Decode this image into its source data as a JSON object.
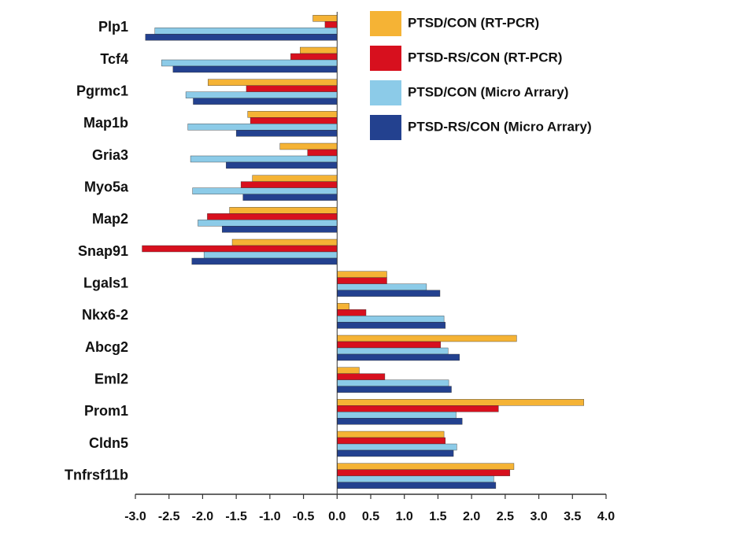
{
  "chart_data": {
    "type": "barh",
    "categories": [
      "Plp1",
      "Tcf4",
      "Pgrmc1",
      "Map1b",
      "Gria3",
      "Myo5a",
      "Map2",
      "Snap91",
      "Lgals1",
      "Nkx6-2",
      "Abcg2",
      "Eml2",
      "Prom1",
      "Cldn5",
      "Tnfrsf11b"
    ],
    "series": [
      {
        "name": "PTSD/CON (RT-PCR)",
        "color": "#f5b335",
        "values": [
          -0.36,
          -0.55,
          -1.92,
          -1.33,
          -0.85,
          -1.26,
          -1.6,
          -1.56,
          0.74,
          0.18,
          2.67,
          0.33,
          3.67,
          1.59,
          2.63
        ]
      },
      {
        "name": "PTSD-RS/CON (RT-PCR)",
        "color": "#d7101e",
        "values": [
          -0.18,
          -0.69,
          -1.35,
          -1.29,
          -0.44,
          -1.43,
          -1.93,
          -2.9,
          0.74,
          0.43,
          1.54,
          0.71,
          2.4,
          1.61,
          2.57
        ]
      },
      {
        "name": "PTSD/CON (Micro Arrary)",
        "color": "#8ccbe8",
        "values": [
          -2.71,
          -2.61,
          -2.25,
          -2.22,
          -2.18,
          -2.15,
          -2.07,
          -1.98,
          1.33,
          1.59,
          1.65,
          1.66,
          1.77,
          1.78,
          2.33
        ]
      },
      {
        "name": "PTSD-RS/CON (Micro Arrary)",
        "color": "#23418f",
        "values": [
          -2.85,
          -2.44,
          -2.14,
          -1.5,
          -1.65,
          -1.4,
          -1.71,
          -2.16,
          1.53,
          1.61,
          1.82,
          1.7,
          1.86,
          1.73,
          2.36
        ]
      }
    ],
    "xlim": [
      -3,
      4
    ],
    "xticks": [
      {
        "value": -3,
        "label": "-3.0"
      },
      -2.5,
      {
        "value": -2,
        "label": "-2.0"
      },
      -1.5,
      {
        "value": -1,
        "label": "-1.0"
      },
      -0.5,
      {
        "value": 0,
        "label": "0.0"
      },
      0.5,
      {
        "value": 1,
        "label": "1.0"
      },
      1.5,
      {
        "value": 2,
        "label": "2.0"
      },
      2.5,
      {
        "value": 3,
        "label": "3.0"
      },
      3.5,
      {
        "value": 4,
        "label": "4.0"
      }
    ],
    "legend": "upper right"
  }
}
